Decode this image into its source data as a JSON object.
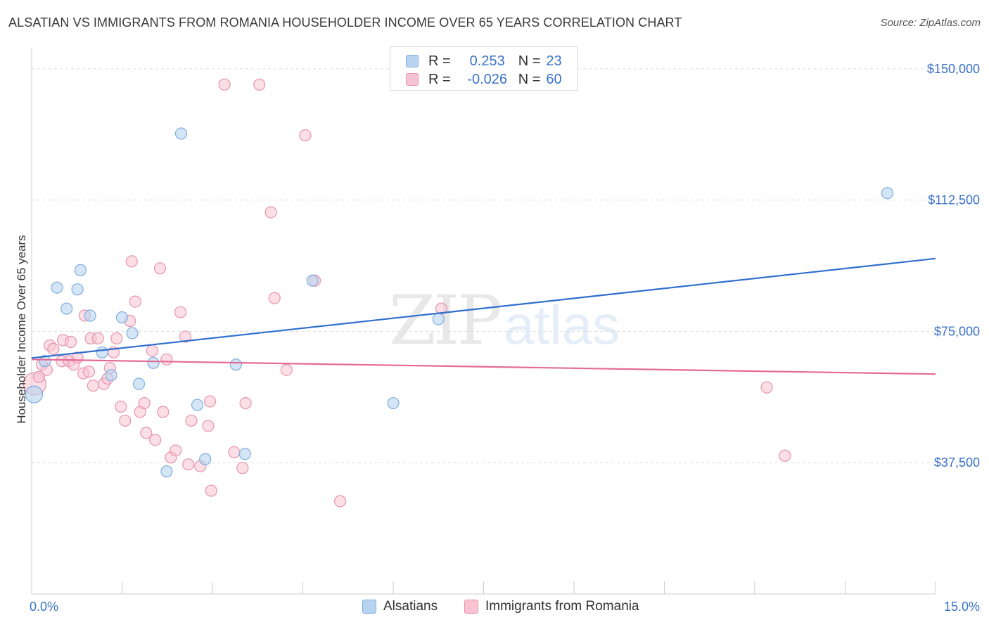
{
  "title": "ALSATIAN VS IMMIGRANTS FROM ROMANIA HOUSEHOLDER INCOME OVER 65 YEARS CORRELATION CHART",
  "source": "Source: ZipAtlas.com",
  "watermark": {
    "zip": "ZIP",
    "atlas": "atlas"
  },
  "legend_top": {
    "rows": [
      {
        "r_label": "R =",
        "r_value": "0.253",
        "n_label": "N =",
        "n_value": "23"
      },
      {
        "r_label": "R =",
        "r_value": "-0.026",
        "n_label": "N =",
        "n_value": "60"
      }
    ]
  },
  "legend_bottom": {
    "items": [
      "Alsatians",
      "Immigrants from Romania"
    ]
  },
  "colors": {
    "alsatians_fill": "#b8d3f0",
    "alsatians_stroke": "#7eaee0",
    "alsatians_line": "#2f6fce",
    "romania_fill": "#f7c3d2",
    "romania_stroke": "#e893ae",
    "romania_line": "#e46b96",
    "tick_text": "#3b73c8",
    "grid": "#dddddd"
  },
  "chart_data": {
    "type": "scatter",
    "title": "ALSATIAN VS IMMIGRANTS FROM ROMANIA HOUSEHOLDER INCOME OVER 65 YEARS CORRELATION CHART",
    "xlabel": "",
    "ylabel": "Householder Income Over 65 years",
    "xlim": [
      0,
      15
    ],
    "ylim": [
      0,
      156000
    ],
    "x_tick_labels": [
      "0.0%",
      "15.0%"
    ],
    "y_ticks": [
      37500,
      75000,
      112500,
      150000
    ],
    "y_tick_labels": [
      "$37,500",
      "$75,000",
      "$112,500",
      "$150,000"
    ],
    "grid": true,
    "legend": "top-center",
    "series": [
      {
        "name": "Alsatians",
        "R": 0.253,
        "N": 23,
        "trend": {
          "x": [
            0,
            15
          ],
          "y": [
            67400,
            95800
          ]
        },
        "points": [
          {
            "x": 0.04,
            "y": 57000
          },
          {
            "x": 0.22,
            "y": 66500
          },
          {
            "x": 0.42,
            "y": 87500
          },
          {
            "x": 0.58,
            "y": 81500
          },
          {
            "x": 0.76,
            "y": 87000
          },
          {
            "x": 0.81,
            "y": 92500
          },
          {
            "x": 0.97,
            "y": 79500
          },
          {
            "x": 1.17,
            "y": 69000
          },
          {
            "x": 1.32,
            "y": 62500
          },
          {
            "x": 1.5,
            "y": 79000
          },
          {
            "x": 1.67,
            "y": 74500
          },
          {
            "x": 1.78,
            "y": 60000
          },
          {
            "x": 2.02,
            "y": 66000
          },
          {
            "x": 2.24,
            "y": 35000
          },
          {
            "x": 2.48,
            "y": 131500
          },
          {
            "x": 2.75,
            "y": 54000
          },
          {
            "x": 2.88,
            "y": 38500
          },
          {
            "x": 3.39,
            "y": 65500
          },
          {
            "x": 3.54,
            "y": 40000
          },
          {
            "x": 4.66,
            "y": 89500
          },
          {
            "x": 6.0,
            "y": 54500
          },
          {
            "x": 6.75,
            "y": 78500
          },
          {
            "x": 14.2,
            "y": 114500
          }
        ]
      },
      {
        "name": "Immigrants from Romania",
        "R": -0.026,
        "N": 60,
        "trend": {
          "x": [
            0,
            15
          ],
          "y": [
            67000,
            62800
          ]
        },
        "points": [
          {
            "x": 0.05,
            "y": 60000
          },
          {
            "x": 0.12,
            "y": 62000
          },
          {
            "x": 0.17,
            "y": 65500
          },
          {
            "x": 0.25,
            "y": 64000
          },
          {
            "x": 0.3,
            "y": 71000
          },
          {
            "x": 0.36,
            "y": 70000
          },
          {
            "x": 0.5,
            "y": 66500
          },
          {
            "x": 0.52,
            "y": 72500
          },
          {
            "x": 0.62,
            "y": 66500
          },
          {
            "x": 0.65,
            "y": 72000
          },
          {
            "x": 0.7,
            "y": 65500
          },
          {
            "x": 0.76,
            "y": 67500
          },
          {
            "x": 0.86,
            "y": 63000
          },
          {
            "x": 0.88,
            "y": 79500
          },
          {
            "x": 0.95,
            "y": 63500
          },
          {
            "x": 0.98,
            "y": 73000
          },
          {
            "x": 1.02,
            "y": 59500
          },
          {
            "x": 1.1,
            "y": 73000
          },
          {
            "x": 1.2,
            "y": 60000
          },
          {
            "x": 1.26,
            "y": 61500
          },
          {
            "x": 1.3,
            "y": 64500
          },
          {
            "x": 1.36,
            "y": 69000
          },
          {
            "x": 1.41,
            "y": 73000
          },
          {
            "x": 1.48,
            "y": 53500
          },
          {
            "x": 1.55,
            "y": 49500
          },
          {
            "x": 1.63,
            "y": 78000
          },
          {
            "x": 1.66,
            "y": 95000
          },
          {
            "x": 1.72,
            "y": 83500
          },
          {
            "x": 1.8,
            "y": 52000
          },
          {
            "x": 1.87,
            "y": 54500
          },
          {
            "x": 1.9,
            "y": 46000
          },
          {
            "x": 2.0,
            "y": 69500
          },
          {
            "x": 2.05,
            "y": 44000
          },
          {
            "x": 2.13,
            "y": 93000
          },
          {
            "x": 2.18,
            "y": 52000
          },
          {
            "x": 2.24,
            "y": 67000
          },
          {
            "x": 2.31,
            "y": 39000
          },
          {
            "x": 2.39,
            "y": 41000
          },
          {
            "x": 2.47,
            "y": 80500
          },
          {
            "x": 2.55,
            "y": 73500
          },
          {
            "x": 2.6,
            "y": 37000
          },
          {
            "x": 2.65,
            "y": 49500
          },
          {
            "x": 2.8,
            "y": 36500
          },
          {
            "x": 2.93,
            "y": 48000
          },
          {
            "x": 2.96,
            "y": 55000
          },
          {
            "x": 2.98,
            "y": 29500
          },
          {
            "x": 3.2,
            "y": 145500
          },
          {
            "x": 3.36,
            "y": 40500
          },
          {
            "x": 3.5,
            "y": 36000
          },
          {
            "x": 3.55,
            "y": 54500
          },
          {
            "x": 3.78,
            "y": 145500
          },
          {
            "x": 3.97,
            "y": 109000
          },
          {
            "x": 4.03,
            "y": 84500
          },
          {
            "x": 4.23,
            "y": 64000
          },
          {
            "x": 4.54,
            "y": 131000
          },
          {
            "x": 4.7,
            "y": 89500
          },
          {
            "x": 5.12,
            "y": 26500
          },
          {
            "x": 6.8,
            "y": 81500
          },
          {
            "x": 12.2,
            "y": 59000
          },
          {
            "x": 12.5,
            "y": 39500
          }
        ]
      }
    ]
  }
}
